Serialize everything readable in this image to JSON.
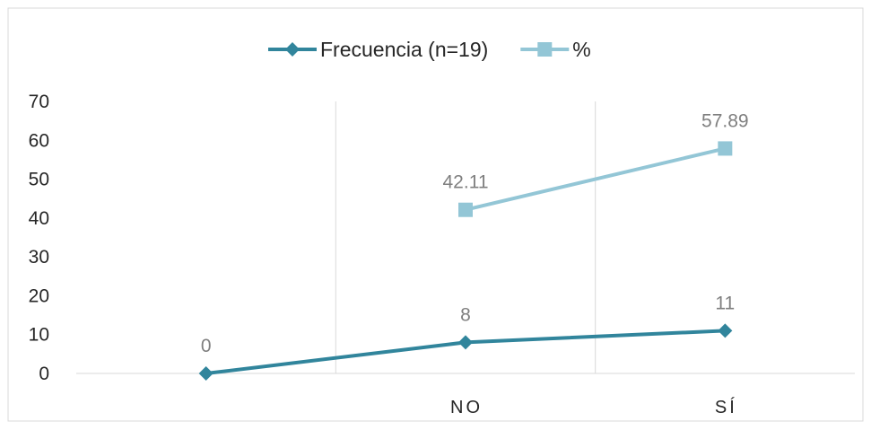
{
  "chart_data": {
    "type": "line",
    "categories": [
      "",
      "NO",
      "SÍ"
    ],
    "series": [
      {
        "name": "Frecuencia (n=19)",
        "values": [
          0,
          8,
          11
        ],
        "labels": [
          "0",
          "8",
          "11"
        ],
        "color": "#31859c",
        "marker": "diamond"
      },
      {
        "name": "%",
        "values": [
          null,
          42.11,
          57.89
        ],
        "labels": [
          "",
          "42.11",
          "57.89"
        ],
        "color": "#93c6d6",
        "marker": "square"
      }
    ],
    "yticks": [
      "0",
      "10",
      "20",
      "30",
      "40",
      "50",
      "60",
      "70"
    ],
    "ylim": [
      0,
      70
    ],
    "grid": "vertical",
    "legend_position": "top"
  }
}
